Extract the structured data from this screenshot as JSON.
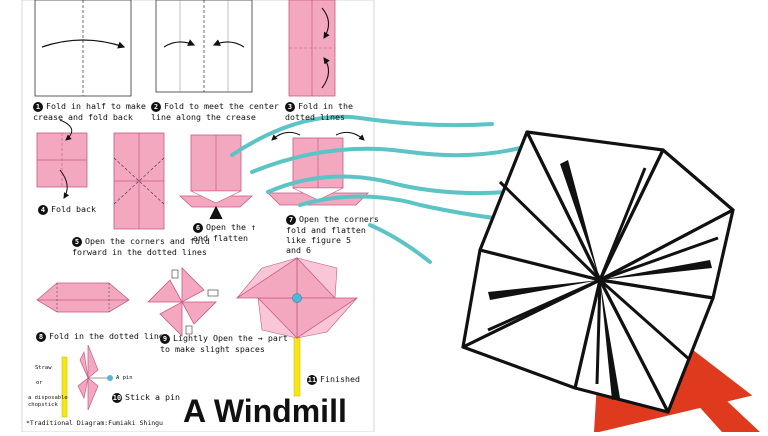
{
  "steps": [
    {
      "num": "1",
      "text": "Fold in half to make a\ncrease and fold back"
    },
    {
      "num": "2",
      "text": "Fold to meet the center\nline along the crease"
    },
    {
      "num": "3",
      "text": "Fold in the\ndotted lines"
    },
    {
      "num": "4",
      "text": "Fold back"
    },
    {
      "num": "5",
      "text": "Open the corners and fold\nforward in the dotted lines"
    },
    {
      "num": "6",
      "text": "Open the ↑\nand flatten"
    },
    {
      "num": "7",
      "text": "Open the corners\nfold and flatten\nlike figure 5\nand 6"
    },
    {
      "num": "8",
      "text": "Fold in the dotted line"
    },
    {
      "num": "9",
      "text": "Lightly Open the → part\nto make slight spaces"
    },
    {
      "num": "10",
      "text": "Stick a pin"
    },
    {
      "num": "11",
      "text": "Finished"
    }
  ],
  "annotations": {
    "straw": "Straw",
    "or": "or",
    "chopstick": "a disposable\nchopstick",
    "pin": "A pin"
  },
  "title": "A Windmill",
  "credit": "*Traditional Diagram:Fumiaki Shingu",
  "colors": {
    "paper_pink": "#f4a8c0",
    "paper_edge": "#c85a85",
    "wind_lines": "#5cc4c4",
    "stick_red": "#e03a1e",
    "straw_yellow": "#f5e61a",
    "pin_head": "#4fb8d8"
  }
}
